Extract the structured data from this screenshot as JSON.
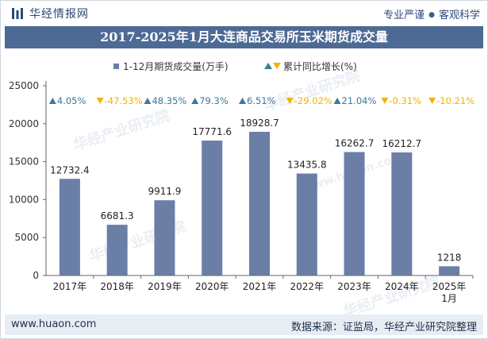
{
  "header": {
    "brand": "华经情报网",
    "tag1": "专业严谨",
    "tag2": "客观科学",
    "title": "2017-2025年1月大连商品交易所玉米期货成交量"
  },
  "footer": {
    "site": "www.huaon.com",
    "source": "数据来源：证监局，华经产业研究院整理"
  },
  "watermark": {
    "text": "华经产业研究院",
    "url": "www.huaon.com"
  },
  "colors": {
    "bar": "#6a7ea6",
    "up": "#3a7a9a",
    "down": "#f0b400",
    "title_bg": "#4d6a94"
  },
  "chart_data": {
    "type": "bar",
    "title": "2017-2025年1月大连商品交易所玉米期货成交量",
    "categories": [
      "2017年",
      "2018年",
      "2019年",
      "2020年",
      "2021年",
      "2022年",
      "2023年",
      "2024年",
      "2025年\n1月"
    ],
    "series": [
      {
        "name": "1-12月期货成交量(万手)",
        "values": [
          12732.4,
          6681.3,
          9911.9,
          17771.6,
          18928.7,
          13435.8,
          16262.7,
          16212.7,
          1218
        ]
      }
    ],
    "growth": {
      "name": "累计同比增长(%)",
      "labels": [
        "4.05%",
        "-47.53%",
        "48.35%",
        "79.3%",
        "6.51%",
        "-29.02%",
        "21.04%",
        "-0.31%",
        "-10.21%"
      ],
      "values": [
        4.05,
        -47.53,
        48.35,
        79.3,
        6.51,
        -29.02,
        21.04,
        -0.31,
        -10.21
      ]
    },
    "ylim": [
      0,
      25000
    ],
    "yticks": [
      0,
      5000,
      10000,
      15000,
      20000,
      25000
    ],
    "legend_position": "top-left",
    "grid": false
  }
}
